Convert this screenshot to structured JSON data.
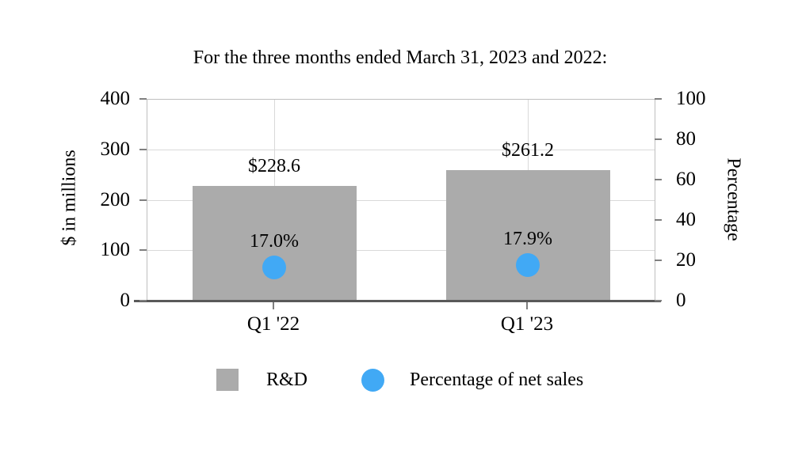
{
  "chart_data": {
    "type": "combo",
    "title": "For the three months ended March 31, 2023 and 2022:",
    "categories": [
      "Q1 '22",
      "Q1 '23"
    ],
    "series": [
      {
        "name": "R&D",
        "type": "bar",
        "axis": "left",
        "values": [
          228.6,
          261.2
        ],
        "labels": [
          "$228.6",
          "$261.2"
        ],
        "color": "#ababab"
      },
      {
        "name": "Percentage of net sales",
        "type": "scatter",
        "axis": "right",
        "values": [
          17.0,
          17.9
        ],
        "labels": [
          "17.0%",
          "17.9%"
        ],
        "color": "#41a9f5"
      }
    ],
    "left_axis": {
      "label": "$ in millions",
      "min": 0,
      "max": 400,
      "ticks": [
        0,
        100,
        200,
        300,
        400
      ]
    },
    "right_axis": {
      "label": "Percentage",
      "min": 0,
      "max": 100,
      "ticks": [
        0,
        20,
        40,
        60,
        80,
        100
      ]
    },
    "legend": [
      {
        "label": "R&D",
        "swatch": "square",
        "color": "#ababab"
      },
      {
        "label": "Percentage of net sales",
        "swatch": "circle",
        "color": "#41a9f5"
      }
    ],
    "grid": {
      "on": true,
      "gridline_color": "#d9d9d9",
      "frame_color": "#bfbfbf",
      "axis_line_color": "#595959",
      "tick_color": "#7f7f7f"
    },
    "legend_position": "bottom"
  }
}
